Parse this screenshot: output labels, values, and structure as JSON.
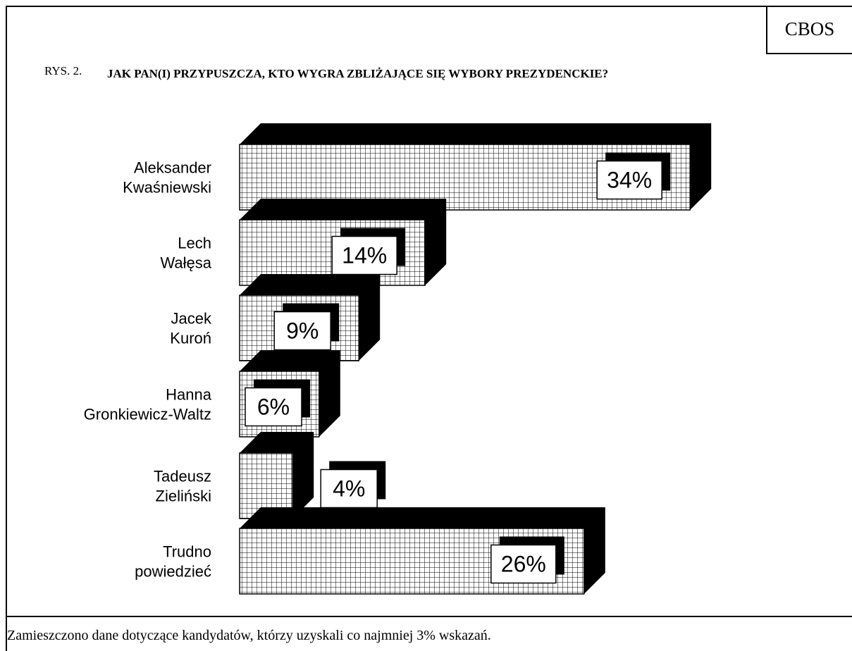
{
  "header": {
    "org": "CBOS"
  },
  "figure": {
    "number": "RYS. 2.",
    "title": "JAK PAN(I) PRZYPUSZCZA, KTO WYGRA ZBLIŻAJĄCE SIĘ WYBORY PREZYDENCKIE?"
  },
  "footnote": "Zamieszczono dane dotyczące kandydatów, którzy uzyskali co najmniej 3% wskazań.",
  "colors": {
    "bar_face": "#ffffff",
    "grid": "#000000",
    "bar_depth": "#000000"
  },
  "chart_data": {
    "type": "bar",
    "orientation": "horizontal",
    "style": "3d-hatched",
    "categories": [
      [
        "Aleksander",
        "Kwaśniewski"
      ],
      [
        "Lech",
        "Wałęsa"
      ],
      [
        "Jacek",
        "Kuroń"
      ],
      [
        "Hanna",
        "Gronkiewicz-Waltz"
      ],
      [
        "Tadeusz",
        "Zieliński"
      ],
      [
        "Trudno",
        "powiedzieć"
      ]
    ],
    "values": [
      34,
      14,
      9,
      6,
      4,
      26
    ],
    "value_labels": [
      "34%",
      "14%",
      "9%",
      "6%",
      "4%",
      "26%"
    ],
    "unit": "%",
    "grid": false
  }
}
